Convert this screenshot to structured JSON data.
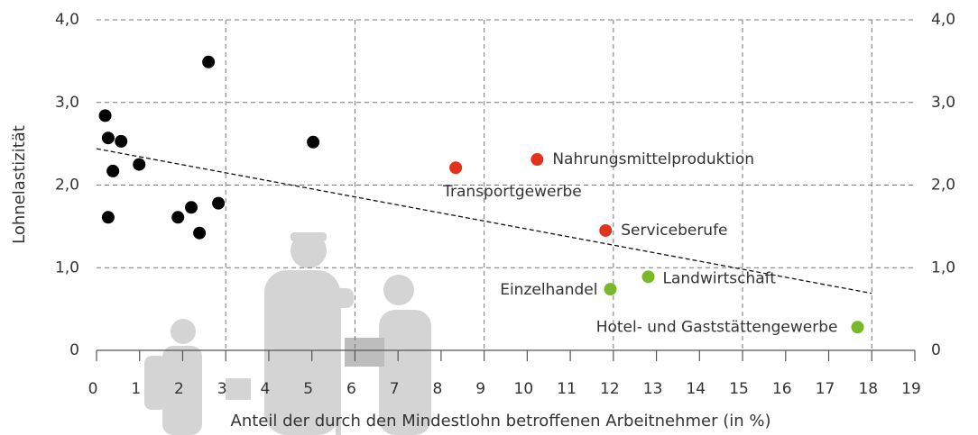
{
  "chart_data": {
    "type": "scatter",
    "x_label": "Anteil der durch den Mindestlohn betroffenen Arbeitnehmer (in %)",
    "y_label": "Lohnelastizität",
    "xlim": [
      0,
      19
    ],
    "ylim": [
      0,
      4
    ],
    "xticks": [
      0,
      1,
      2,
      3,
      4,
      5,
      6,
      7,
      8,
      9,
      10,
      11,
      12,
      13,
      14,
      15,
      16,
      17,
      18,
      19
    ],
    "yticks": [
      0,
      {
        "value": 1,
        "label": "1,0"
      },
      {
        "value": 2,
        "label": "2,0"
      },
      {
        "value": 3,
        "label": "3,0"
      },
      {
        "value": 4,
        "label": "4,0"
      }
    ],
    "grid": true,
    "series": [
      {
        "color": "#000000",
        "x": [
          2.6,
          0.27,
          0.57,
          0.2,
          0.38,
          0.99,
          0.27,
          1.89,
          2.2,
          2.39,
          2.83,
          5.03
        ],
        "y": [
          3.49,
          2.57,
          2.53,
          2.84,
          2.17,
          2.25,
          1.61,
          1.61,
          1.73,
          1.42,
          1.78,
          2.52
        ]
      },
      {
        "color": "#e2311d",
        "x": [
          8.34,
          10.23,
          11.82
        ],
        "y": [
          2.21,
          2.31,
          1.45
        ],
        "labels": [
          "Transportgewerbe",
          "Nahrungsmittelproduktion",
          "Serviceberufe"
        ]
      },
      {
        "color": "#7ab829",
        "x": [
          11.93,
          12.81,
          17.67
        ],
        "y": [
          0.74,
          0.89,
          0.28
        ],
        "labels": [
          "Einzelhandel",
          "Landwirtschaft",
          "Hotel- und Gaststättengewerbe"
        ]
      }
    ],
    "trendline": {
      "x": [
        0,
        18
      ],
      "y": [
        2.44,
        0.69
      ]
    }
  }
}
